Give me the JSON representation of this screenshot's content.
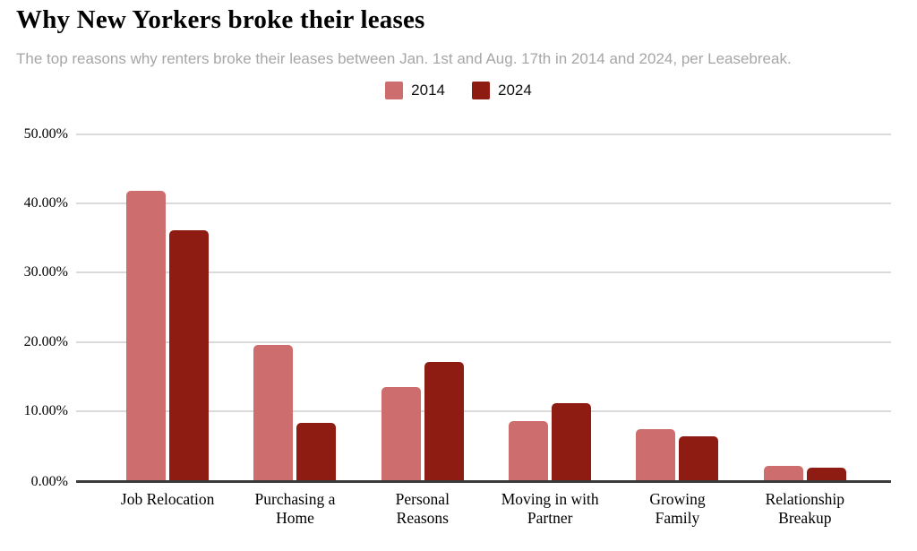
{
  "chart_data": {
    "type": "bar",
    "title": "Why New Yorkers broke their leases",
    "subtitle": "The top reasons why renters broke their leases between Jan. 1st and Aug. 17th in 2014 and 2024, per Leasebreak.",
    "categories": [
      "Job Relocation",
      "Purchasing a Home",
      "Personal Reasons",
      "Moving in with Partner",
      "Growing Family",
      "Relationship Breakup"
    ],
    "category_lines": [
      [
        "Job Relocation"
      ],
      [
        "Purchasing a",
        "Home"
      ],
      [
        "Personal",
        "Reasons"
      ],
      [
        "Moving in with",
        "Partner"
      ],
      [
        "Growing",
        "Family"
      ],
      [
        "Relationship",
        "Breakup"
      ]
    ],
    "series": [
      {
        "name": "2014",
        "color": "#CD6D6D",
        "values": [
          41.8,
          19.6,
          13.5,
          8.5,
          7.4,
          2.1
        ]
      },
      {
        "name": "2024",
        "color": "#8E1C12",
        "values": [
          36.2,
          8.3,
          17.1,
          11.2,
          6.3,
          1.8
        ]
      }
    ],
    "xlabel": "",
    "ylabel": "",
    "ylim": [
      0,
      50
    ],
    "yticks": [
      "0.00%",
      "10.00%",
      "20.00%",
      "30.00%",
      "40.00%",
      "50.00%"
    ],
    "grid": true,
    "legend_position": "top-center",
    "styles": {
      "gridline_color": "#DADADA",
      "baseline_color": "#3B3B3B",
      "title_color": "#000000",
      "subtitle_color": "#A6A6A6"
    }
  }
}
